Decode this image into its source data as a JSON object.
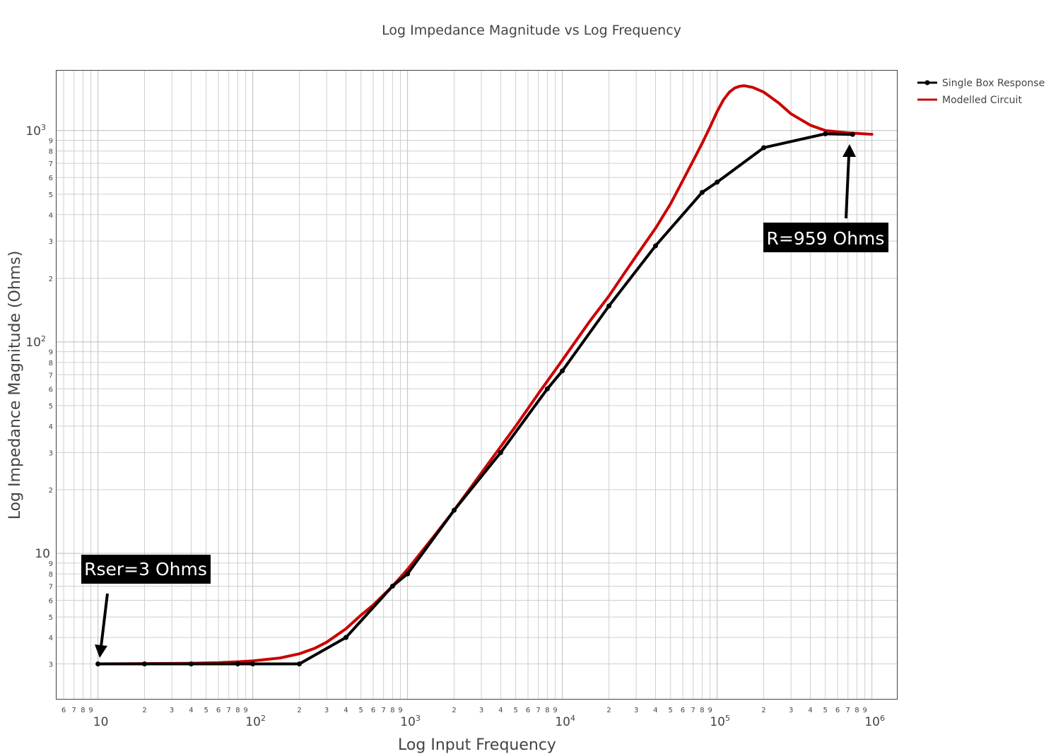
{
  "chart_data": {
    "type": "line",
    "title": "Log Impedance Magnitude vs Log Frequency",
    "xlabel": "Log Input Frequency",
    "ylabel": "Log Impedance Magnitude (Ohms)",
    "x_scale": "log",
    "y_scale": "log",
    "xlim": [
      5.4,
      1450000
    ],
    "ylim": [
      2.05,
      1920
    ],
    "grid": true,
    "legend_position": "top-right",
    "x_minor_ticks": [
      6,
      7,
      8,
      9,
      20,
      30,
      40,
      50,
      60,
      70,
      80,
      90,
      200,
      300,
      400,
      500,
      600,
      700,
      800,
      900,
      2000,
      3000,
      4000,
      5000,
      6000,
      7000,
      8000,
      9000,
      20000,
      30000,
      40000,
      50000,
      60000,
      70000,
      80000,
      90000,
      200000,
      300000,
      400000,
      500000,
      600000,
      700000,
      800000,
      900000
    ],
    "x_major_ticks": [
      {
        "value": 10,
        "base": "10",
        "exp": ""
      },
      {
        "value": 100,
        "base": "10",
        "exp": "2"
      },
      {
        "value": 1000,
        "base": "10",
        "exp": "3"
      },
      {
        "value": 10000,
        "base": "10",
        "exp": "4"
      },
      {
        "value": 100000,
        "base": "10",
        "exp": "5"
      },
      {
        "value": 1000000,
        "base": "10",
        "exp": "6"
      }
    ],
    "y_minor_ticks": [
      3,
      4,
      5,
      6,
      7,
      8,
      9,
      20,
      30,
      40,
      50,
      60,
      70,
      80,
      90,
      200,
      300,
      400,
      500,
      600,
      700,
      800,
      900
    ],
    "y_major_ticks": [
      {
        "value": 10,
        "base": "10",
        "exp": ""
      },
      {
        "value": 100,
        "base": "10",
        "exp": "2"
      },
      {
        "value": 1000,
        "base": "10",
        "exp": "3"
      }
    ],
    "series": [
      {
        "name": "Single Box Response",
        "color": "#000000",
        "markers": true,
        "x": [
          10,
          20,
          40,
          80,
          100,
          200,
          400,
          800,
          1000,
          2000,
          4000,
          8000,
          10000,
          20000,
          40000,
          80000,
          100000,
          200000,
          500000,
          750000
        ],
        "y": [
          3,
          3,
          3,
          3,
          3,
          3,
          4,
          7,
          8,
          16,
          30,
          60,
          73,
          148,
          285,
          510,
          570,
          830,
          965,
          959
        ]
      },
      {
        "name": "Modelled Circuit",
        "color": "#cc0000",
        "markers": false,
        "x": [
          10,
          20,
          40,
          60,
          80,
          100,
          150,
          200,
          250,
          300,
          400,
          500,
          600,
          800,
          1000,
          1500,
          2000,
          3000,
          4000,
          5000,
          7000,
          10000,
          15000,
          20000,
          25000,
          30000,
          40000,
          50000,
          60000,
          70000,
          80000,
          90000,
          100000,
          110000,
          120000,
          130000,
          140000,
          150000,
          170000,
          200000,
          250000,
          300000,
          400000,
          500000,
          700000,
          1000000
        ],
        "y": [
          3,
          3.01,
          3.02,
          3.04,
          3.07,
          3.1,
          3.2,
          3.35,
          3.55,
          3.8,
          4.4,
          5.1,
          5.7,
          7,
          8.4,
          12.2,
          16,
          24,
          32,
          40,
          57,
          82,
          125,
          165,
          210,
          255,
          345,
          450,
          580,
          720,
          870,
          1040,
          1230,
          1400,
          1520,
          1590,
          1620,
          1630,
          1600,
          1520,
          1350,
          1200,
          1060,
          1000,
          975,
          960
        ]
      }
    ],
    "annotations": [
      {
        "text": "Rser=3 Ohms",
        "x": 10,
        "y": 3
      },
      {
        "text": "R=959 Ohms",
        "x": 750000,
        "y": 959
      }
    ]
  }
}
